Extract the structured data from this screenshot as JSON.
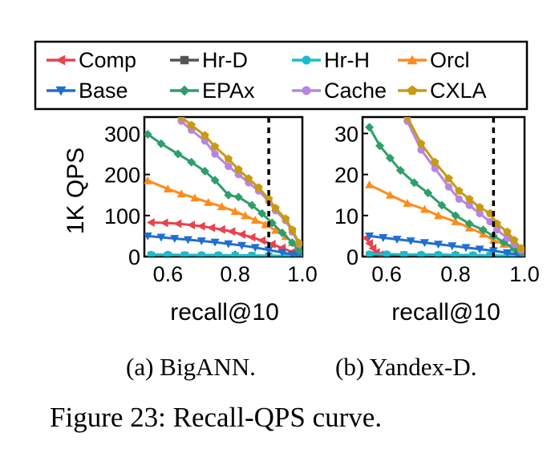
{
  "figure": {
    "caption": "Figure 23: Recall-QPS curve.",
    "subcaptions": [
      "(a) BigANN.",
      "(b) Yandex-D."
    ]
  },
  "legend": [
    {
      "name": "Comp",
      "color": "#e8424c",
      "marker": "triangle-left"
    },
    {
      "name": "Hr-D",
      "color": "#555555",
      "marker": "square"
    },
    {
      "name": "Hr-H",
      "color": "#17becf",
      "marker": "circle"
    },
    {
      "name": "Orcl",
      "color": "#ff8c1a",
      "marker": "triangle-up"
    },
    {
      "name": "Base",
      "color": "#1f6fd1",
      "marker": "triangle-down"
    },
    {
      "name": "EPAx",
      "color": "#2e9e6b",
      "marker": "diamond"
    },
    {
      "name": "Cache",
      "color": "#b685e0",
      "marker": "circle"
    },
    {
      "name": "CXLA",
      "color": "#c89a14",
      "marker": "pentagon"
    }
  ],
  "chart_data": [
    {
      "type": "line",
      "subcaption": "(a) BigANN.",
      "xlabel": "recall@10",
      "ylabel": "1K QPS",
      "xlim": [
        0.53,
        1.0
      ],
      "ylim": [
        0,
        340
      ],
      "xticks": [
        0.6,
        0.8,
        1.0
      ],
      "yticks": [
        0,
        100,
        200,
        300
      ],
      "xtick_labels": [
        "0.6",
        "0.8",
        "1.0"
      ],
      "ytick_labels": [
        "0",
        "100",
        "200",
        "300"
      ],
      "reference_line_x": 0.9,
      "series": [
        {
          "name": "Comp",
          "x": [
            0.55,
            0.59,
            0.63,
            0.67,
            0.7,
            0.73,
            0.76,
            0.79,
            0.82,
            0.85,
            0.88,
            0.91,
            0.94,
            0.97,
            0.99
          ],
          "y": [
            83,
            82,
            80,
            77,
            74,
            70,
            66,
            61,
            54,
            47,
            39,
            30,
            21,
            11,
            4
          ]
        },
        {
          "name": "Hr-D",
          "x": [
            0.55,
            0.6,
            0.65,
            0.7,
            0.75,
            0.8,
            0.85,
            0.9,
            0.95,
            0.99
          ],
          "y": [
            3,
            3,
            3,
            2,
            2,
            2,
            2,
            1,
            1,
            1
          ]
        },
        {
          "name": "Hr-H",
          "x": [
            0.55,
            0.6,
            0.65,
            0.7,
            0.75,
            0.8,
            0.85,
            0.9,
            0.95,
            0.99
          ],
          "y": [
            5,
            5,
            4,
            4,
            4,
            3,
            3,
            2,
            2,
            1
          ]
        },
        {
          "name": "Orcl",
          "x": [
            0.54,
            0.6,
            0.64,
            0.68,
            0.72,
            0.76,
            0.8,
            0.83,
            0.86,
            0.89,
            0.92,
            0.95,
            0.97,
            0.99
          ],
          "y": [
            185,
            165,
            153,
            143,
            132,
            122,
            110,
            100,
            89,
            78,
            64,
            49,
            34,
            17
          ]
        },
        {
          "name": "Base",
          "x": [
            0.54,
            0.58,
            0.62,
            0.66,
            0.7,
            0.74,
            0.78,
            0.82,
            0.86,
            0.9,
            0.94,
            0.97,
            0.99
          ],
          "y": [
            50,
            47,
            44,
            41,
            38,
            35,
            31,
            27,
            22,
            16,
            10,
            5,
            2
          ]
        },
        {
          "name": "EPAx",
          "x": [
            0.54,
            0.58,
            0.63,
            0.67,
            0.71,
            0.74,
            0.78,
            0.81,
            0.85,
            0.88,
            0.91,
            0.94,
            0.97,
            0.99
          ],
          "y": [
            298,
            275,
            250,
            230,
            208,
            186,
            150,
            145,
            125,
            105,
            82,
            58,
            34,
            14
          ]
        },
        {
          "name": "Cache",
          "x": [
            0.64,
            0.67,
            0.71,
            0.74,
            0.78,
            0.81,
            0.84,
            0.87,
            0.9,
            0.92,
            0.95,
            0.97,
            0.99
          ],
          "y": [
            330,
            308,
            282,
            250,
            220,
            200,
            180,
            160,
            135,
            112,
            88,
            60,
            30
          ]
        },
        {
          "name": "CXLA",
          "x": [
            0.64,
            0.67,
            0.71,
            0.74,
            0.78,
            0.81,
            0.84,
            0.87,
            0.9,
            0.92,
            0.95,
            0.97,
            0.99
          ],
          "y": [
            340,
            320,
            295,
            268,
            238,
            212,
            190,
            168,
            140,
            118,
            92,
            65,
            33
          ]
        }
      ]
    },
    {
      "type": "line",
      "subcaption": "(b) Yandex-D.",
      "xlabel": "recall@10",
      "ylabel": "",
      "xlim": [
        0.53,
        1.0
      ],
      "ylim": [
        0,
        34
      ],
      "xticks": [
        0.6,
        0.8,
        1.0
      ],
      "yticks": [
        0,
        10,
        20,
        30
      ],
      "xtick_labels": [
        "0.6",
        "0.8",
        "1.0"
      ],
      "ytick_labels": [
        "0",
        "10",
        "20",
        "30"
      ],
      "reference_line_x": 0.91,
      "series": [
        {
          "name": "Comp",
          "x": [
            0.54,
            0.55,
            0.56,
            0.57,
            0.58
          ],
          "y": [
            4.5,
            3.2,
            2.0,
            1.0,
            0.4
          ]
        },
        {
          "name": "Hr-D",
          "x": [
            0.55,
            0.6,
            0.65,
            0.7,
            0.75,
            0.8,
            0.85,
            0.9,
            0.95,
            0.99
          ],
          "y": [
            0.4,
            0.4,
            0.4,
            0.3,
            0.3,
            0.3,
            0.2,
            0.2,
            0.1,
            0.1
          ]
        },
        {
          "name": "Hr-H",
          "x": [
            0.55,
            0.6,
            0.65,
            0.7,
            0.75,
            0.8,
            0.85,
            0.9,
            0.95,
            0.99
          ],
          "y": [
            0.6,
            0.6,
            0.5,
            0.5,
            0.5,
            0.4,
            0.4,
            0.3,
            0.2,
            0.1
          ]
        },
        {
          "name": "Orcl",
          "x": [
            0.55,
            0.61,
            0.66,
            0.71,
            0.75,
            0.8,
            0.84,
            0.88,
            0.91,
            0.94,
            0.97,
            0.99
          ],
          "y": [
            17.5,
            15,
            13,
            11.5,
            10,
            8.5,
            7,
            5.5,
            4,
            3,
            2,
            1
          ]
        },
        {
          "name": "Base",
          "x": [
            0.55,
            0.59,
            0.63,
            0.67,
            0.71,
            0.75,
            0.79,
            0.83,
            0.87,
            0.91,
            0.95,
            0.98,
            0.99
          ],
          "y": [
            5,
            4.6,
            4.2,
            3.8,
            3.4,
            3.0,
            2.6,
            2.2,
            1.8,
            1.4,
            0.9,
            0.5,
            0.3
          ]
        },
        {
          "name": "EPAx",
          "x": [
            0.55,
            0.58,
            0.61,
            0.64,
            0.68,
            0.72,
            0.76,
            0.8,
            0.84,
            0.88,
            0.91,
            0.94,
            0.97,
            0.99
          ],
          "y": [
            31.5,
            27,
            24,
            21,
            18,
            15.5,
            12.5,
            10,
            8,
            6.5,
            5,
            3.5,
            2,
            1
          ]
        },
        {
          "name": "Cache",
          "x": [
            0.66,
            0.7,
            0.74,
            0.78,
            0.81,
            0.84,
            0.87,
            0.9,
            0.92,
            0.95,
            0.97,
            0.99
          ],
          "y": [
            33,
            26,
            21.5,
            17,
            14,
            12.5,
            10.5,
            8.5,
            6.5,
            4.5,
            3,
            1.5
          ]
        },
        {
          "name": "CXLA",
          "x": [
            0.66,
            0.7,
            0.74,
            0.78,
            0.81,
            0.84,
            0.87,
            0.9,
            0.92,
            0.95,
            0.97,
            0.99
          ],
          "y": [
            34,
            27.5,
            23,
            19,
            16,
            14,
            12,
            10.5,
            8,
            6,
            4,
            2
          ]
        }
      ]
    }
  ]
}
